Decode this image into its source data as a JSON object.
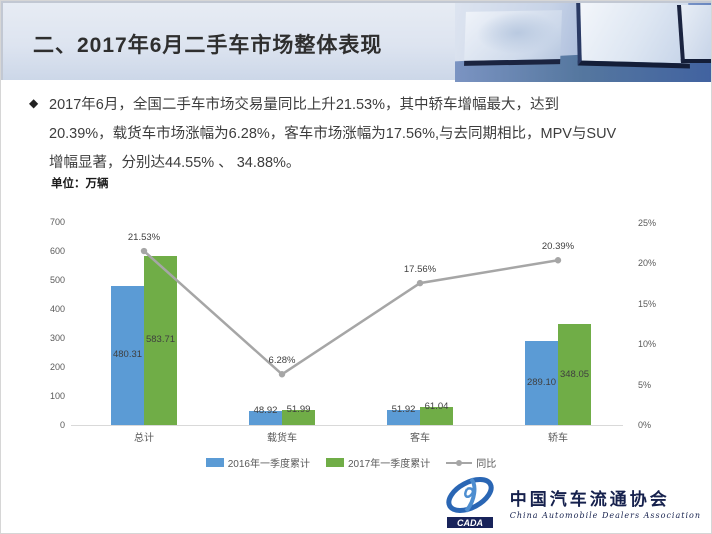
{
  "header": {
    "title": "二、2017年6月二手车市场整体表现"
  },
  "intro": {
    "bullet": "◆",
    "lines": [
      "2017年6月，全国二手车市场交易量同比上升21.53%，其中轿车增幅最大，达到",
      "20.39%，载货车市场涨幅为6.28%，客车市场涨幅为17.56%,与去同期相比，MPV与SUV",
      "增幅显著，分别达44.55% 、 34.88%。"
    ]
  },
  "chart_data": {
    "type": "bar",
    "subtype": "grouped bars with secondary-axis line",
    "unit_label": "单位：万辆",
    "categories": [
      "总计",
      "载货车",
      "客车",
      "轿车"
    ],
    "series": [
      {
        "name": "2016年一季度累计",
        "type": "bar",
        "color": "#5B9BD5",
        "values": [
          480.31,
          48.92,
          51.92,
          289.1
        ],
        "labels": [
          "480.31",
          "48.92",
          "51.92",
          "289.10"
        ]
      },
      {
        "name": "2017年一季度累计",
        "type": "bar",
        "color": "#70AD47",
        "values": [
          583.71,
          51.99,
          61.04,
          348.05
        ],
        "labels": [
          "583.71",
          "51.99",
          "61.04",
          "348.05"
        ]
      },
      {
        "name": "同比",
        "type": "line",
        "axis": "secondary",
        "color": "#A6A6A6",
        "values": [
          21.53,
          6.28,
          17.56,
          20.39
        ],
        "labels": [
          "21.53%",
          "6.28%",
          "17.56%",
          "20.39%"
        ]
      }
    ],
    "y_left": {
      "min": 0,
      "max": 700,
      "step": 100,
      "ticks": [
        "0",
        "100",
        "200",
        "300",
        "400",
        "500",
        "600",
        "700"
      ]
    },
    "y_right": {
      "min": 0,
      "max": 25,
      "step": 5,
      "ticks": [
        "0%",
        "5%",
        "10%",
        "15%",
        "20%",
        "25%"
      ]
    },
    "grid": false,
    "legend_position": "bottom"
  },
  "footer": {
    "logo_acronym": "CADA",
    "org_cn": "中国汽车流通协会",
    "org_en": "China Automobile Dealers Association"
  }
}
